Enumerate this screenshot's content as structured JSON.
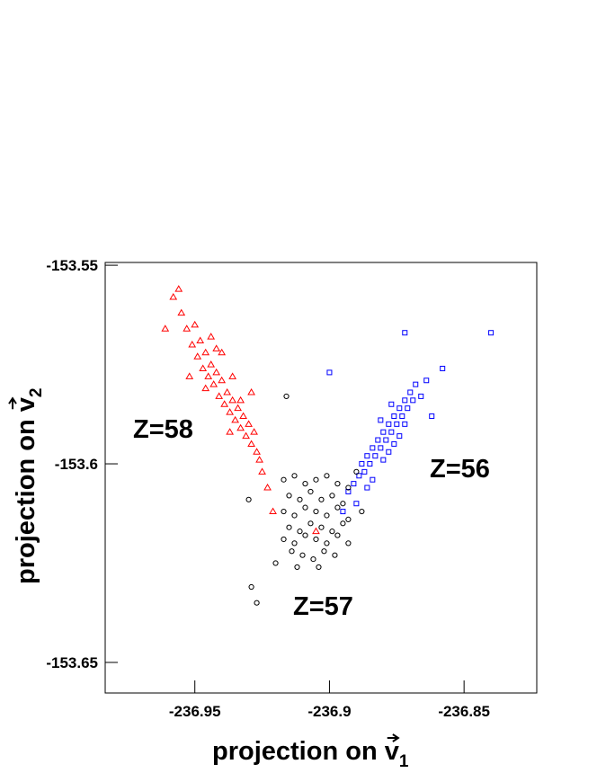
{
  "chart_data": {
    "type": "scatter",
    "xlabel": "projection on",
    "xlabel_vector": "v",
    "xlabel_subscript": "1",
    "ylabel": "projection on",
    "ylabel_vector": "v",
    "ylabel_subscript": "2",
    "xlim": [
      -236.9833,
      -236.823
    ],
    "ylim": [
      -153.6577,
      -153.5493
    ],
    "xticks": [
      -236.95,
      -236.9,
      -236.85
    ],
    "yticks": [
      -153.65,
      -153.6,
      -153.55
    ],
    "series": [
      {
        "name": "Z=58",
        "color": "#ff0000",
        "marker": "triangle",
        "x": [
          -236.961,
          -236.958,
          -236.956,
          -236.955,
          -236.953,
          -236.951,
          -236.95,
          -236.949,
          -236.948,
          -236.947,
          -236.946,
          -236.945,
          -236.944,
          -236.943,
          -236.942,
          -236.941,
          -236.94,
          -236.939,
          -236.938,
          -236.937,
          -236.936,
          -236.935,
          -236.934,
          -236.933,
          -236.932,
          -236.931,
          -236.93,
          -236.929,
          -236.928,
          -236.927,
          -236.926,
          -236.925,
          -236.923,
          -236.929,
          -236.944,
          -236.952,
          -236.937,
          -236.921,
          -236.905,
          -236.94,
          -236.946,
          -236.942,
          -236.936,
          -236.933
        ],
        "y": [
          -153.566,
          -153.558,
          -153.556,
          -153.562,
          -153.566,
          -153.57,
          -153.565,
          -153.573,
          -153.569,
          -153.576,
          -153.572,
          -153.578,
          -153.575,
          -153.58,
          -153.577,
          -153.583,
          -153.579,
          -153.585,
          -153.582,
          -153.587,
          -153.584,
          -153.589,
          -153.586,
          -153.591,
          -153.588,
          -153.593,
          -153.59,
          -153.595,
          -153.592,
          -153.597,
          -153.599,
          -153.602,
          -153.606,
          -153.582,
          -153.568,
          -153.578,
          -153.592,
          -153.612,
          -153.617,
          -153.572,
          -153.581,
          -153.571,
          -153.578,
          -153.584
        ]
      },
      {
        "name": "Z=56",
        "color": "#0000ff",
        "marker": "square",
        "x": [
          -236.893,
          -236.891,
          -236.889,
          -236.888,
          -236.887,
          -236.886,
          -236.885,
          -236.884,
          -236.883,
          -236.882,
          -236.881,
          -236.88,
          -236.879,
          -236.878,
          -236.877,
          -236.876,
          -236.875,
          -236.874,
          -236.873,
          -236.872,
          -236.871,
          -236.87,
          -236.869,
          -236.868,
          -236.884,
          -236.88,
          -236.876,
          -236.872,
          -236.89,
          -236.886,
          -236.878,
          -236.874,
          -236.866,
          -236.864,
          -236.858,
          -236.84,
          -236.872,
          -236.9,
          -236.895,
          -236.862,
          -236.881,
          -236.877
        ],
        "y": [
          -153.607,
          -153.605,
          -153.603,
          -153.6,
          -153.602,
          -153.598,
          -153.6,
          -153.596,
          -153.598,
          -153.594,
          -153.596,
          -153.592,
          -153.594,
          -153.59,
          -153.592,
          -153.588,
          -153.59,
          -153.586,
          -153.588,
          -153.584,
          -153.586,
          -153.582,
          -153.584,
          -153.58,
          -153.604,
          -153.599,
          -153.595,
          -153.59,
          -153.61,
          -153.606,
          -153.597,
          -153.593,
          -153.583,
          -153.579,
          -153.576,
          -153.567,
          -153.567,
          -153.577,
          -153.612,
          -153.588,
          -153.589,
          -153.585
        ]
      },
      {
        "name": "Z=57",
        "color": "#000000",
        "marker": "circle",
        "x": [
          -236.917,
          -236.913,
          -236.909,
          -236.905,
          -236.901,
          -236.897,
          -236.893,
          -236.915,
          -236.911,
          -236.907,
          -236.903,
          -236.899,
          -236.895,
          -236.917,
          -236.913,
          -236.909,
          -236.905,
          -236.901,
          -236.897,
          -236.893,
          -236.915,
          -236.911,
          -236.907,
          -236.903,
          -236.899,
          -236.895,
          -236.917,
          -236.913,
          -236.909,
          -236.905,
          -236.901,
          -236.897,
          -236.893,
          -236.914,
          -236.91,
          -236.906,
          -236.902,
          -236.898,
          -236.929,
          -236.927,
          -236.916,
          -236.93,
          -236.92,
          -236.888,
          -236.89,
          -236.912,
          -236.904
        ],
        "y": [
          -153.604,
          -153.603,
          -153.605,
          -153.604,
          -153.603,
          -153.605,
          -153.606,
          -153.608,
          -153.609,
          -153.607,
          -153.609,
          -153.608,
          -153.61,
          -153.612,
          -153.613,
          -153.611,
          -153.612,
          -153.613,
          -153.611,
          -153.614,
          -153.616,
          -153.617,
          -153.615,
          -153.616,
          -153.617,
          -153.615,
          -153.619,
          -153.62,
          -153.618,
          -153.619,
          -153.62,
          -153.618,
          -153.62,
          -153.622,
          -153.623,
          -153.624,
          -153.622,
          -153.623,
          -153.631,
          -153.635,
          -153.583,
          -153.609,
          -153.625,
          -153.612,
          -153.602,
          -153.626,
          -153.626
        ]
      }
    ]
  }
}
